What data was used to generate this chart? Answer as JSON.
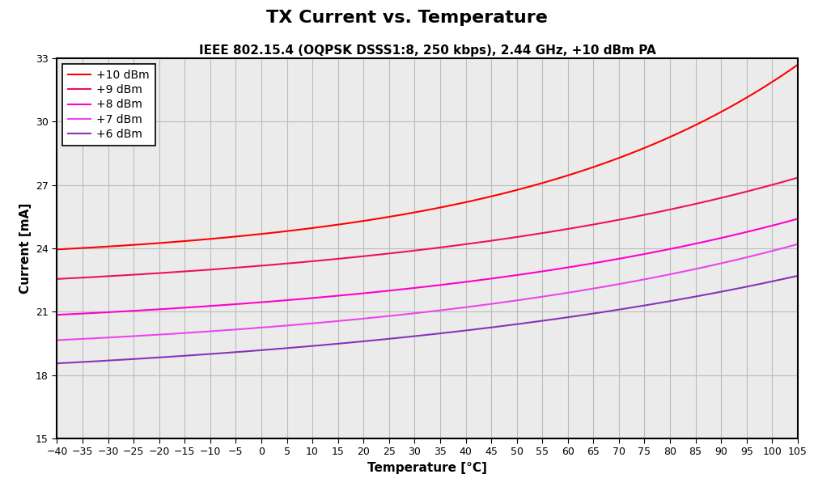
{
  "title": "TX Current vs. Temperature",
  "subtitle": "IEEE 802.15.4 (OQPSK DSSS1:8, 250 kbps), 2.44 GHz, +10 dBm PA",
  "xlabel": "Temperature [°C]",
  "ylabel": "Current [mA]",
  "xlim": [
    -40,
    105
  ],
  "ylim": [
    15,
    33
  ],
  "yticks": [
    15,
    18,
    21,
    24,
    27,
    30,
    33
  ],
  "xticks": [
    -40,
    -35,
    -30,
    -25,
    -20,
    -15,
    -10,
    -5,
    0,
    5,
    10,
    15,
    20,
    25,
    30,
    35,
    40,
    45,
    50,
    55,
    60,
    65,
    70,
    75,
    80,
    85,
    90,
    95,
    100,
    105
  ],
  "series": [
    {
      "label": "+10 dBm",
      "color": "#FF0000",
      "t_start": 23.95,
      "t_end": 32.7,
      "exp_k": 0.018
    },
    {
      "label": "+9 dBm",
      "color": "#EE1060",
      "t_start": 22.55,
      "t_end": 27.35,
      "exp_k": 0.012
    },
    {
      "label": "+8 dBm",
      "color": "#FF00CC",
      "t_start": 20.85,
      "t_end": 25.4,
      "exp_k": 0.012
    },
    {
      "label": "+7 dBm",
      "color": "#EE44EE",
      "t_start": 19.65,
      "t_end": 24.2,
      "exp_k": 0.012
    },
    {
      "label": "+6 dBm",
      "color": "#8833BB",
      "t_start": 18.55,
      "t_end": 22.7,
      "exp_k": 0.01
    }
  ],
  "background_color": "#FFFFFF",
  "plot_bg_color": "#EBEBEB",
  "grid_color": "#BBBBBB",
  "title_fontsize": 16,
  "subtitle_fontsize": 11,
  "axis_label_fontsize": 11,
  "tick_fontsize": 9,
  "legend_fontsize": 10,
  "line_width": 1.5
}
